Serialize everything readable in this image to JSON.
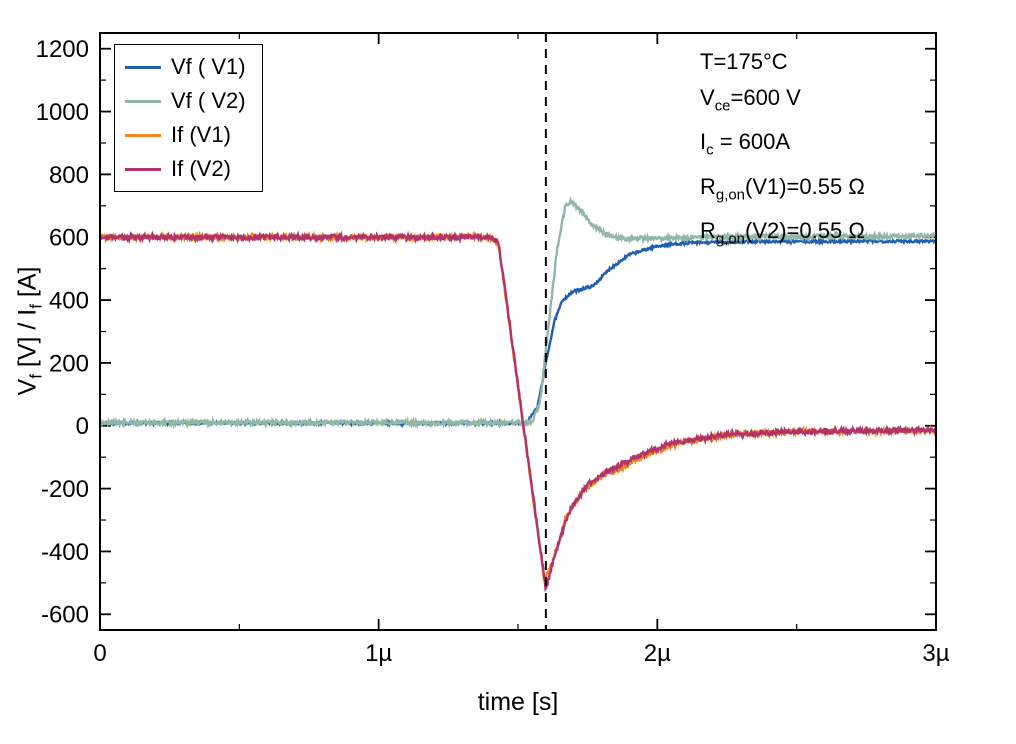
{
  "chart_data": {
    "type": "line",
    "title": "",
    "xlabel": "time [s]",
    "ylabel_segments": [
      {
        "t": "V"
      },
      {
        "s": "f"
      },
      {
        "t": " [V] / I"
      },
      {
        "s": "f"
      },
      {
        "t": " [A]"
      }
    ],
    "xlim": [
      0,
      3
    ],
    "x_unit": "µs",
    "ylim": [
      -600,
      1200
    ],
    "display_ylim": [
      -650,
      1250
    ],
    "grid": false,
    "legend_position": "top-left",
    "frame_color": "#000000",
    "x_ticks": [
      {
        "v": 0,
        "label": "0"
      },
      {
        "v": 1,
        "label": "1µ"
      },
      {
        "v": 2,
        "label": "2µ"
      },
      {
        "v": 3,
        "label": "3µ"
      }
    ],
    "x_minor_ticks": [
      0.5,
      1.5,
      2.5
    ],
    "y_ticks": [
      {
        "v": -600,
        "label": "-600"
      },
      {
        "v": -400,
        "label": "-400"
      },
      {
        "v": -200,
        "label": "-200"
      },
      {
        "v": 0,
        "label": "0"
      },
      {
        "v": 200,
        "label": "200"
      },
      {
        "v": 400,
        "label": "400"
      },
      {
        "v": 600,
        "label": "600"
      },
      {
        "v": 800,
        "label": "800"
      },
      {
        "v": 1000,
        "label": "1000"
      },
      {
        "v": 1200,
        "label": "1200"
      }
    ],
    "y_minor_ticks": [
      -500,
      -300,
      -100,
      100,
      300,
      500,
      700,
      900,
      1100
    ],
    "dashed_line": {
      "x": 1.6,
      "color": "#000000",
      "style": "dashed"
    },
    "series": [
      {
        "name": "Vf ( V1)",
        "color": "#1f5fae",
        "noise": 4,
        "keypoints": [
          [
            0,
            8
          ],
          [
            1.53,
            8
          ],
          [
            1.57,
            60
          ],
          [
            1.6,
            200
          ],
          [
            1.63,
            330
          ],
          [
            1.66,
            400
          ],
          [
            1.7,
            428
          ],
          [
            1.77,
            445
          ],
          [
            1.83,
            500
          ],
          [
            1.9,
            545
          ],
          [
            2.0,
            572
          ],
          [
            2.1,
            582
          ],
          [
            2.35,
            586
          ],
          [
            3.0,
            588
          ]
        ]
      },
      {
        "name": "Vf ( V2)",
        "color": "#93b7a6",
        "noise": 7,
        "keypoints": [
          [
            0,
            10
          ],
          [
            1.55,
            10
          ],
          [
            1.58,
            80
          ],
          [
            1.61,
            320
          ],
          [
            1.64,
            560
          ],
          [
            1.67,
            700
          ],
          [
            1.69,
            715
          ],
          [
            1.72,
            690
          ],
          [
            1.76,
            645
          ],
          [
            1.81,
            612
          ],
          [
            1.87,
            595
          ],
          [
            2.0,
            596
          ],
          [
            2.15,
            601
          ],
          [
            3.0,
            604
          ]
        ]
      },
      {
        "name": "If (V1)",
        "color": "#f3871f",
        "noise": 8,
        "keypoints": [
          [
            0,
            600
          ],
          [
            1.4,
            600
          ],
          [
            1.43,
            580
          ],
          [
            1.595,
            -495
          ],
          [
            1.625,
            -430
          ],
          [
            1.67,
            -300
          ],
          [
            1.73,
            -210
          ],
          [
            1.8,
            -160
          ],
          [
            1.87,
            -135
          ],
          [
            1.95,
            -95
          ],
          [
            2.1,
            -50
          ],
          [
            2.3,
            -25
          ],
          [
            2.55,
            -18
          ],
          [
            3.0,
            -16
          ]
        ]
      },
      {
        "name": "If (V2)",
        "color": "#b2336b",
        "noise": 8,
        "keypoints": [
          [
            0,
            600
          ],
          [
            1.4,
            600
          ],
          [
            1.43,
            585
          ],
          [
            1.6,
            -520
          ],
          [
            1.63,
            -420
          ],
          [
            1.68,
            -280
          ],
          [
            1.75,
            -185
          ],
          [
            1.83,
            -140
          ],
          [
            1.91,
            -105
          ],
          [
            2.05,
            -55
          ],
          [
            2.25,
            -28
          ],
          [
            2.5,
            -18
          ],
          [
            3.0,
            -14
          ]
        ]
      }
    ],
    "annotations": [
      [
        {
          "t": "T=175°C"
        }
      ],
      [
        {
          "t": "V"
        },
        {
          "s": "ce"
        },
        {
          "t": "=600 V"
        }
      ],
      [
        {
          "t": "I"
        },
        {
          "s": "c"
        },
        {
          "t": " = 600A"
        }
      ],
      [
        {
          "t": "R"
        },
        {
          "s": "g,on"
        },
        {
          "t": "(V1)=0.55 Ω"
        }
      ],
      [
        {
          "t": "R"
        },
        {
          "s": "g,on"
        },
        {
          "t": "(V2)=0.55 Ω"
        }
      ]
    ]
  }
}
